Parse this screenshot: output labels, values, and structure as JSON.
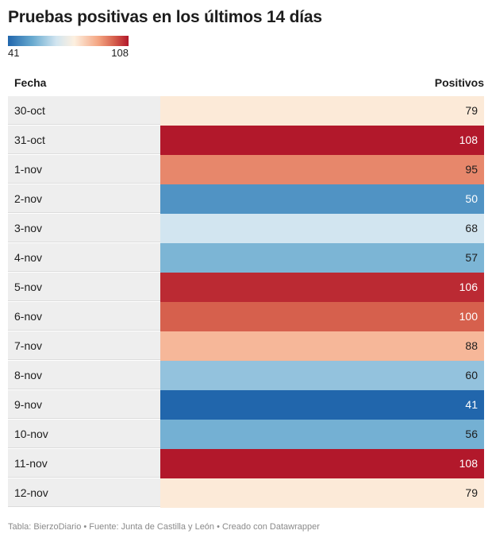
{
  "chart_data": {
    "type": "table",
    "title": "Pruebas positivas en los últimos 14 días",
    "legend": {
      "min": "41",
      "max": "108",
      "placement": "top-left"
    },
    "columns": [
      "Fecha",
      "Positivos"
    ],
    "categories": [
      "30-oct",
      "31-oct",
      "1-nov",
      "2-nov",
      "3-nov",
      "4-nov",
      "5-nov",
      "6-nov",
      "7-nov",
      "8-nov",
      "9-nov",
      "10-nov",
      "11-nov",
      "12-nov"
    ],
    "values": [
      79,
      108,
      95,
      50,
      68,
      57,
      106,
      100,
      88,
      60,
      41,
      56,
      108,
      79
    ],
    "value_range": [
      41,
      108
    ],
    "color_scale": [
      "#2166ac",
      "#fdf0e0",
      "#b2182b"
    ]
  },
  "footer": "Tabla: BierzoDiario • Fuente: Junta de Castilla y León • Creado con Datawrapper"
}
